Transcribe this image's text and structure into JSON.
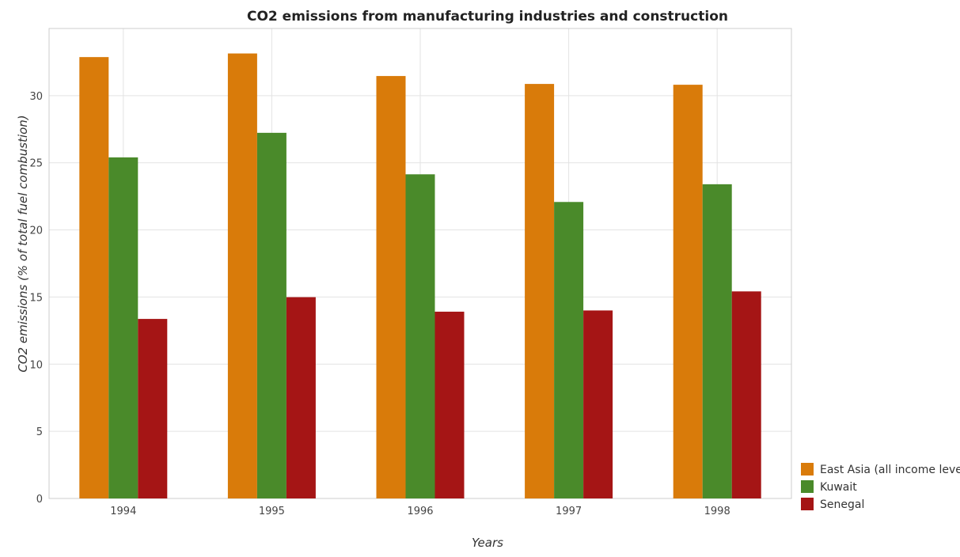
{
  "chart_data": {
    "type": "bar",
    "title": "CO2 emissions from manufacturing industries and construction",
    "xlabel": "Years",
    "ylabel": "CO2 emissions (% of total fuel combustion)",
    "categories": [
      "1994",
      "1995",
      "1996",
      "1997",
      "1998"
    ],
    "ylim": [
      0,
      35
    ],
    "yticks": [
      0,
      5,
      10,
      15,
      20,
      25,
      30
    ],
    "grid": true,
    "legend_position": "bottom-right",
    "series": [
      {
        "name": "East Asia (all income levels)",
        "color": "#d97b0a",
        "values": [
          32.87,
          33.14,
          31.46,
          30.87,
          30.81
        ]
      },
      {
        "name": "Kuwait",
        "color": "#4a8a2a",
        "values": [
          25.4,
          27.23,
          24.14,
          22.08,
          23.4
        ]
      },
      {
        "name": "Senegal",
        "color": "#a51515",
        "values": [
          13.37,
          14.99,
          13.91,
          14.0,
          15.42
        ]
      }
    ]
  }
}
